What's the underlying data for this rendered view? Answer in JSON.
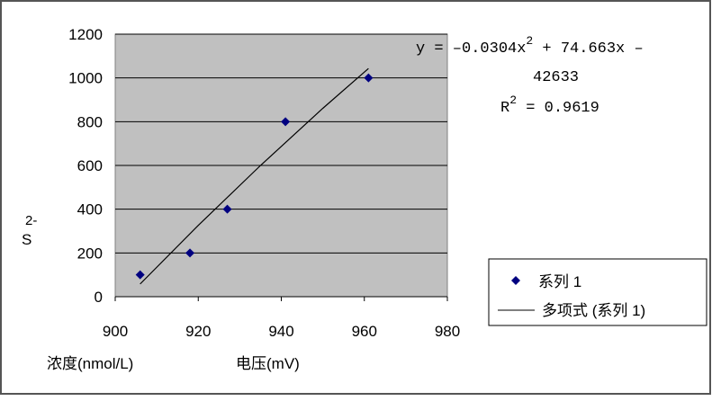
{
  "chart_data": {
    "type": "scatter",
    "x_label": "电压(mV)",
    "y_label": "浓度(nmol/L)",
    "y_unit": "S",
    "y_unit_sup": "2-",
    "xlim": [
      900,
      980
    ],
    "xticks": [
      900,
      920,
      940,
      960,
      980
    ],
    "ylim": [
      0,
      1200
    ],
    "yticks": [
      0,
      200,
      400,
      600,
      800,
      1000,
      1200
    ],
    "grid": true,
    "legend": "right",
    "series": [
      {
        "name": "系列 1",
        "color": "#000080",
        "x": [
          906,
          918,
          927,
          941,
          961
        ],
        "values": [
          100,
          200,
          400,
          800,
          1000
        ]
      },
      {
        "name": "多项式 (系列 1)",
        "color": "#000000",
        "x": [
          906,
          920,
          935,
          950,
          961
        ],
        "values": [
          58,
          326,
          600,
          861,
          1043
        ]
      }
    ],
    "equation": [
      "y = –0.0304x",
      "2",
      " + 74.663x –",
      "42633"
    ],
    "r_squared": [
      "R",
      "2",
      " = 0.9619"
    ]
  }
}
